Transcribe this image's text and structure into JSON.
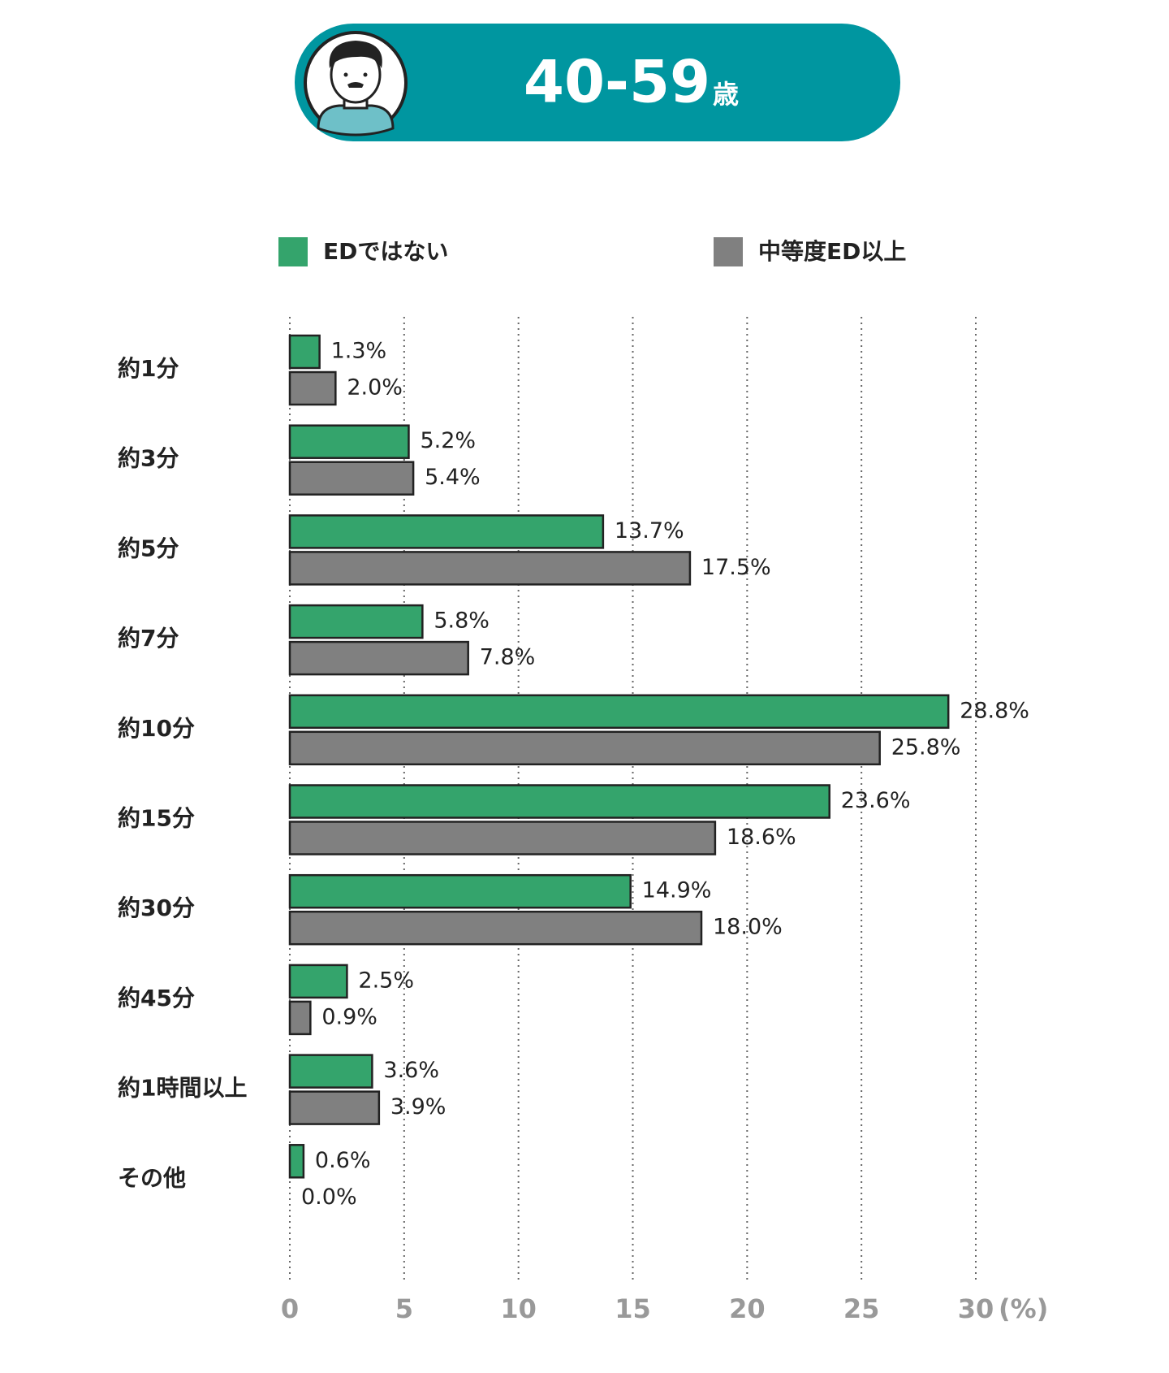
{
  "chart_data": {
    "type": "hbar",
    "title": "40-59",
    "title_unit": "歳",
    "categories": [
      "約1分",
      "約3分",
      "約5分",
      "約7分",
      "約10分",
      "約15分",
      "約30分",
      "約45分",
      "約1時間以上",
      "その他"
    ],
    "series": [
      {
        "name": "EDではない",
        "color": "#34a46c",
        "values": [
          1.3,
          5.2,
          13.7,
          5.8,
          28.8,
          23.6,
          14.9,
          2.5,
          3.6,
          0.6
        ],
        "value_labels": [
          "1.3%",
          "5.2%",
          "13.7%",
          "5.8%",
          "28.8%",
          "23.6%",
          "14.9%",
          "2.5%",
          "3.6%",
          "0.6%"
        ]
      },
      {
        "name": "中等度ED以上",
        "color": "#808080",
        "values": [
          2.0,
          5.4,
          17.5,
          7.8,
          25.8,
          18.6,
          18.0,
          0.9,
          3.9,
          0.0
        ],
        "value_labels": [
          "2.0%",
          "5.4%",
          "17.5%",
          "7.8%",
          "25.8%",
          "18.6%",
          "18.0%",
          "0.9%",
          "3.9%",
          "0.0%"
        ]
      }
    ],
    "xlim": [
      0,
      30
    ],
    "xticks": [
      0,
      5,
      10,
      15,
      20,
      25,
      30
    ],
    "x_unit": "(%)",
    "grid": true
  }
}
